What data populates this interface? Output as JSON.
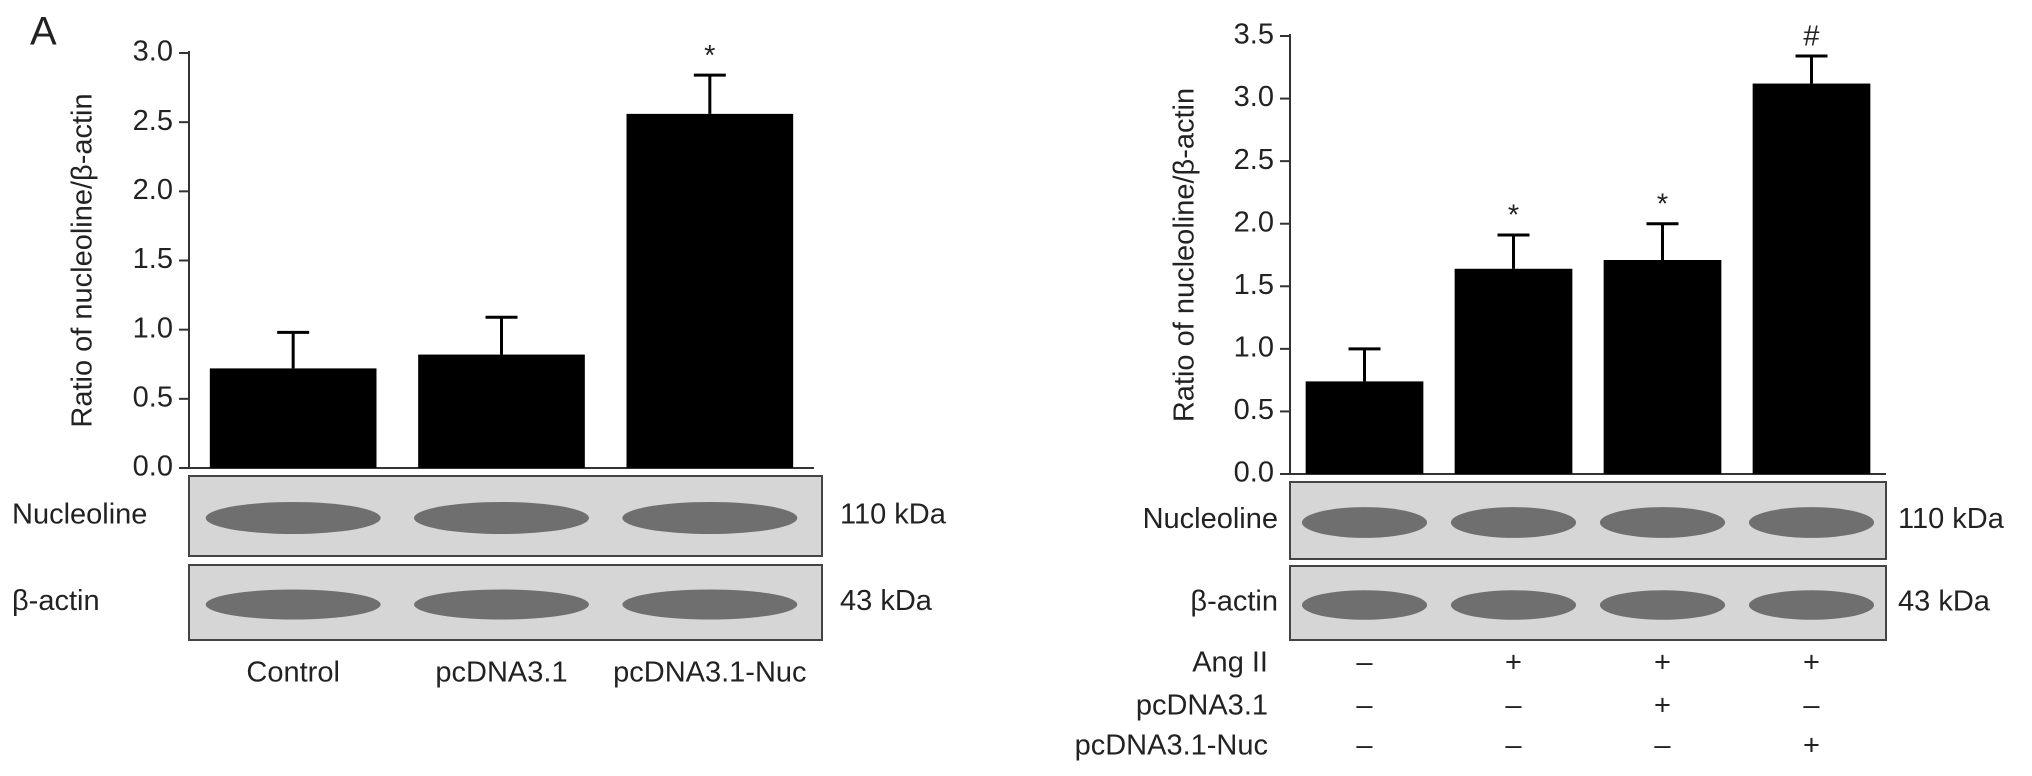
{
  "panel_label": "A",
  "chart_data": [
    {
      "type": "bar",
      "y_label": "Ratio of nucleoline/β-actin",
      "categories": [
        "Control",
        "pcDNA3.1",
        "pcDNA3.1-Nuc"
      ],
      "values": [
        0.72,
        0.82,
        2.56
      ],
      "errors": [
        0.26,
        0.27,
        0.28
      ],
      "significance": [
        null,
        null,
        "*"
      ],
      "color": "#000000",
      "ylim": [
        0,
        3.0
      ],
      "yticks": [
        {
          "value": 0,
          "label": "0.0"
        },
        0.5,
        {
          "value": 1,
          "label": "1.0"
        },
        1.5,
        {
          "value": 2,
          "label": "2.0"
        },
        2.5,
        {
          "value": 3,
          "label": "3.0"
        }
      ],
      "blots": [
        {
          "label": "Nucleoline",
          "size": "110 kDa"
        },
        {
          "label": "β-actin",
          "size": "43 kDa"
        }
      ]
    },
    {
      "type": "bar",
      "y_label": "Ratio of nucleoline/β-actin",
      "categories": [
        null,
        null,
        null,
        null
      ],
      "values": [
        0.74,
        1.64,
        1.71,
        3.12
      ],
      "errors": [
        0.26,
        0.27,
        0.29,
        0.22
      ],
      "significance": [
        null,
        "*",
        "*",
        "#"
      ],
      "color": "#000000",
      "ylim": [
        0,
        3.5
      ],
      "yticks": [
        {
          "value": 0,
          "label": "0.0"
        },
        0.5,
        {
          "value": 1,
          "label": "1.0"
        },
        1.5,
        {
          "value": 2,
          "label": "2.0"
        },
        2.5,
        {
          "value": 3,
          "label": "3.0"
        },
        3.5
      ],
      "blots": [
        {
          "label": "Nucleoline",
          "size": "110 kDa"
        },
        {
          "label": "β-actin",
          "size": "43 kDa"
        }
      ],
      "conditions": [
        {
          "label": "Ang II",
          "signs": [
            "–",
            "+",
            "+",
            "+"
          ]
        },
        {
          "label": "pcDNA3.1",
          "signs": [
            "–",
            "–",
            "+",
            "–"
          ]
        },
        {
          "label": "pcDNA3.1-Nuc",
          "signs": [
            "–",
            "–",
            "–",
            "+"
          ]
        }
      ]
    }
  ]
}
